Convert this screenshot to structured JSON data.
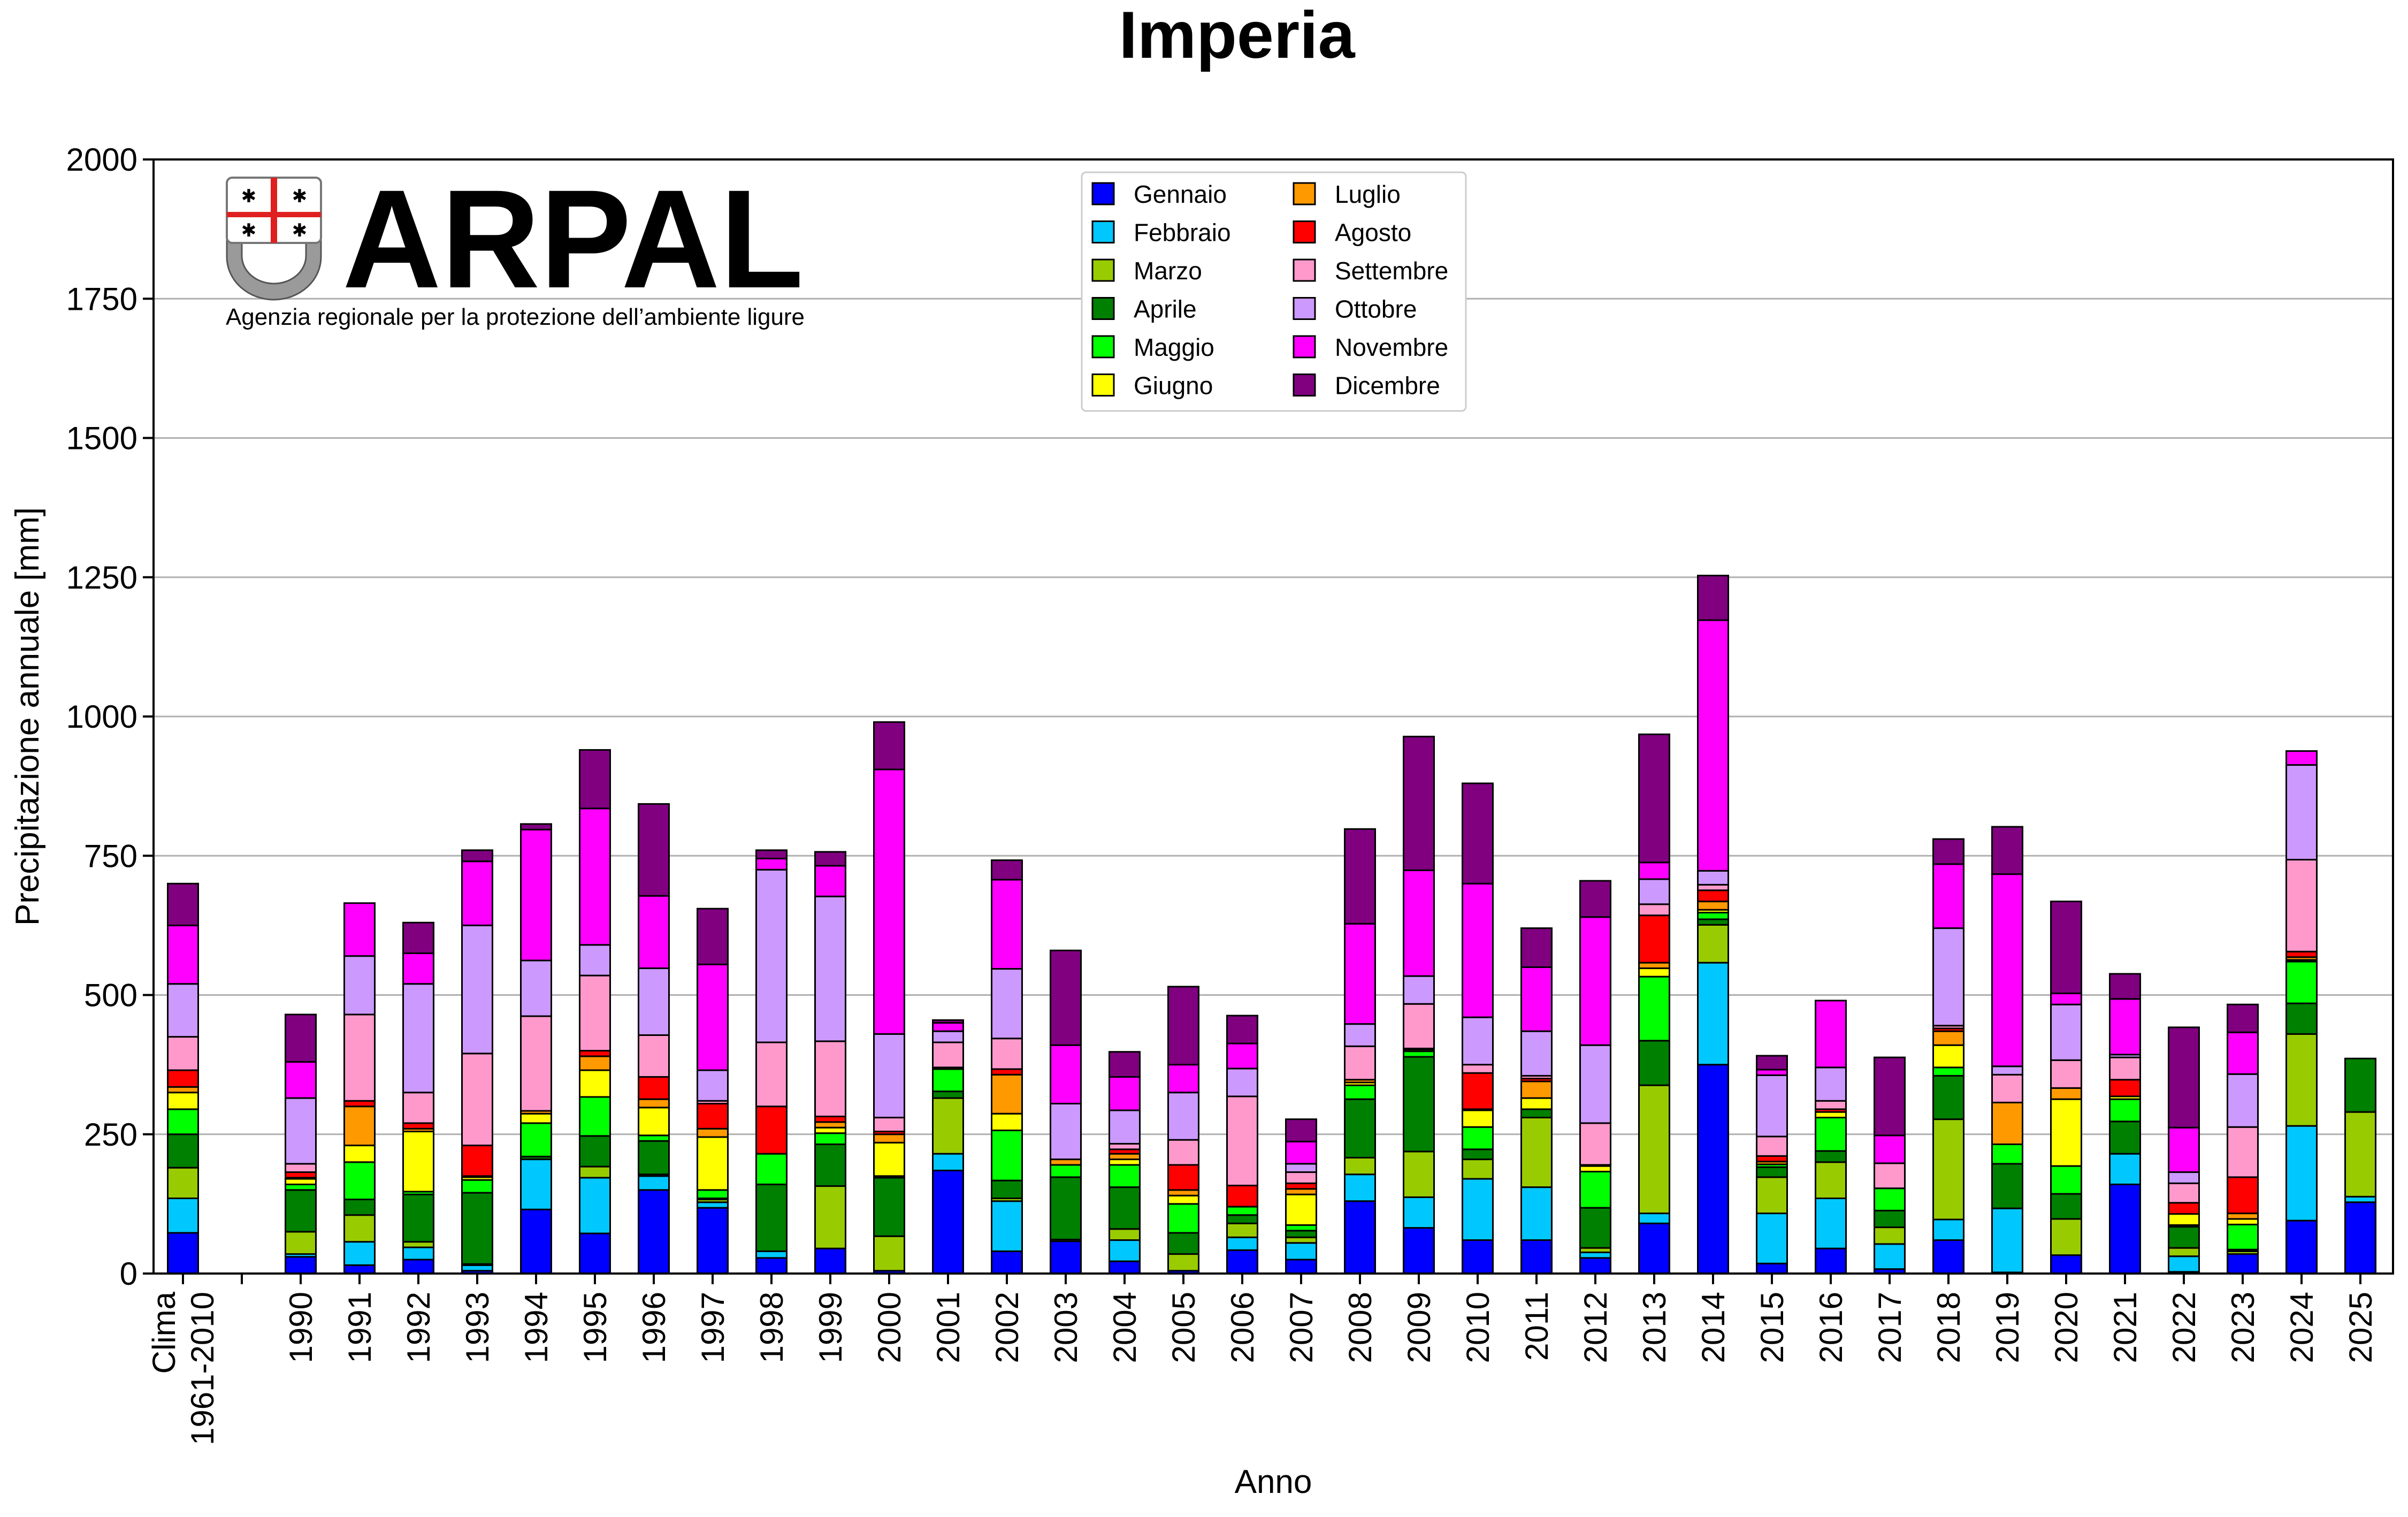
{
  "chart_data": {
    "type": "bar",
    "stacked": true,
    "title": "Imperia",
    "xlabel": "Anno",
    "ylabel": "Precipitazione annuale [mm]",
    "ylim": [
      0,
      2000
    ],
    "yticks": [
      0,
      250,
      500,
      750,
      1000,
      1250,
      1500,
      1750,
      2000
    ],
    "grid": "horizontal",
    "legend_position": "top-center",
    "categories": [
      "Clima\n1961-2010",
      "",
      "1990",
      "1991",
      "1992",
      "1993",
      "1994",
      "1995",
      "1996",
      "1997",
      "1998",
      "1999",
      "2000",
      "2001",
      "2002",
      "2003",
      "2004",
      "2005",
      "2006",
      "2007",
      "2008",
      "2009",
      "2010",
      "2011",
      "2012",
      "2013",
      "2014",
      "2015",
      "2016",
      "2017",
      "2018",
      "2019",
      "2020",
      "2021",
      "2022",
      "2023",
      "2024",
      "2025"
    ],
    "series": [
      {
        "name": "Gennaio",
        "color": "#0000ff",
        "values": [
          73,
          0,
          30,
          15,
          25,
          5,
          115,
          72,
          150,
          118,
          28,
          45,
          5,
          185,
          40,
          58,
          22,
          5,
          42,
          25,
          130,
          82,
          60,
          60,
          28,
          90,
          375,
          18,
          45,
          8,
          60,
          2,
          33,
          160,
          3,
          35,
          95,
          128
        ]
      },
      {
        "name": "Febbraio",
        "color": "#00c8ff",
        "values": [
          62,
          0,
          5,
          42,
          22,
          10,
          90,
          100,
          25,
          10,
          12,
          0,
          0,
          30,
          90,
          0,
          38,
          0,
          23,
          30,
          48,
          55,
          110,
          95,
          10,
          18,
          183,
          90,
          90,
          45,
          37,
          115,
          0,
          55,
          28,
          0,
          170,
          10
        ]
      },
      {
        "name": "Marzo",
        "color": "#99cc00",
        "values": [
          55,
          0,
          40,
          48,
          10,
          2,
          0,
          20,
          3,
          5,
          0,
          112,
          62,
          100,
          5,
          3,
          20,
          30,
          25,
          10,
          30,
          82,
          35,
          125,
          8,
          230,
          68,
          65,
          65,
          30,
          180,
          0,
          65,
          0,
          15,
          5,
          165,
          152
        ]
      },
      {
        "name": "Aprile",
        "color": "#008000",
        "values": [
          60,
          0,
          75,
          28,
          85,
          128,
          5,
          55,
          60,
          2,
          120,
          75,
          105,
          12,
          32,
          112,
          75,
          38,
          15,
          12,
          105,
          170,
          18,
          15,
          72,
          80,
          10,
          18,
          20,
          30,
          78,
          80,
          45,
          58,
          38,
          3,
          55,
          96
        ]
      },
      {
        "name": "Maggio",
        "color": "#00ff00",
        "values": [
          45,
          0,
          10,
          67,
          5,
          23,
          60,
          70,
          10,
          15,
          55,
          20,
          3,
          40,
          90,
          22,
          40,
          52,
          15,
          10,
          25,
          10,
          40,
          0,
          65,
          115,
          12,
          5,
          60,
          40,
          15,
          35,
          50,
          40,
          3,
          45,
          75,
          0
        ]
      },
      {
        "name": "Giugno",
        "color": "#ffff00",
        "values": [
          30,
          0,
          10,
          30,
          108,
          5,
          17,
          48,
          50,
          95,
          0,
          10,
          60,
          3,
          30,
          0,
          10,
          15,
          0,
          55,
          5,
          3,
          30,
          20,
          10,
          15,
          5,
          0,
          10,
          0,
          40,
          0,
          120,
          5,
          20,
          10,
          3,
          0
        ]
      },
      {
        "name": "Luglio",
        "color": "#ff9900",
        "values": [
          10,
          0,
          2,
          70,
          5,
          2,
          5,
          25,
          15,
          15,
          0,
          10,
          15,
          0,
          70,
          10,
          10,
          10,
          0,
          10,
          5,
          2,
          2,
          30,
          2,
          10,
          15,
          5,
          0,
          0,
          25,
          75,
          20,
          0,
          0,
          10,
          5,
          0
        ]
      },
      {
        "name": "Agosto",
        "color": "#ff0000",
        "values": [
          30,
          0,
          10,
          10,
          10,
          55,
          0,
          10,
          40,
          45,
          85,
          10,
          5,
          0,
          10,
          0,
          8,
          45,
          38,
          10,
          0,
          0,
          65,
          5,
          0,
          85,
          20,
          10,
          5,
          0,
          5,
          0,
          0,
          30,
          20,
          65,
          10,
          0
        ]
      },
      {
        "name": "Settembre",
        "color": "#ff99cc",
        "values": [
          60,
          0,
          15,
          155,
          55,
          165,
          170,
          135,
          75,
          5,
          115,
          135,
          25,
          45,
          55,
          0,
          10,
          45,
          160,
          20,
          60,
          80,
          15,
          5,
          75,
          20,
          10,
          35,
          15,
          45,
          5,
          50,
          50,
          40,
          35,
          90,
          165,
          0
        ]
      },
      {
        "name": "Ottobre",
        "color": "#cc99ff",
        "values": [
          95,
          0,
          118,
          105,
          195,
          230,
          100,
          55,
          120,
          55,
          310,
          260,
          150,
          20,
          125,
          100,
          60,
          85,
          50,
          15,
          40,
          50,
          85,
          80,
          140,
          45,
          25,
          110,
          60,
          0,
          175,
          15,
          100,
          5,
          20,
          95,
          170,
          0
        ]
      },
      {
        "name": "Novembre",
        "color": "#ff00ff",
        "values": [
          105,
          0,
          65,
          95,
          55,
          115,
          235,
          245,
          130,
          190,
          20,
          55,
          475,
          15,
          160,
          105,
          60,
          50,
          45,
          40,
          180,
          190,
          240,
          115,
          230,
          30,
          450,
          10,
          120,
          50,
          115,
          345,
          20,
          100,
          80,
          75,
          25,
          0
        ]
      },
      {
        "name": "Dicembre",
        "color": "#800080",
        "values": [
          75,
          0,
          85,
          0,
          55,
          20,
          10,
          105,
          165,
          100,
          15,
          25,
          85,
          5,
          35,
          170,
          45,
          140,
          50,
          40,
          170,
          240,
          180,
          70,
          65,
          230,
          80,
          25,
          0,
          140,
          45,
          85,
          165,
          45,
          180,
          50,
          0,
          0
        ]
      }
    ]
  }
}
